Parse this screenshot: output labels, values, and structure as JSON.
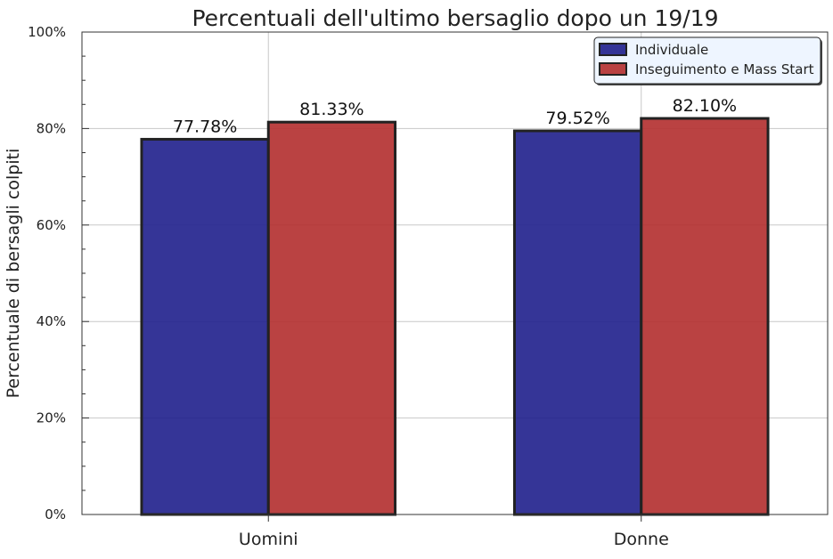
{
  "chart_data": {
    "type": "bar",
    "title": "Percentuali dell'ultimo bersaglio dopo un 19/19",
    "xlabel": "",
    "ylabel": "Percentuale di bersagli colpiti",
    "categories": [
      "Uomini",
      "Donne"
    ],
    "series": [
      {
        "name": "Individuale",
        "values": [
          77.78,
          79.52
        ],
        "labels": [
          "77.78%",
          "79.52%"
        ],
        "color": "#1f1f8c"
      },
      {
        "name": "Inseguimento e Mass Start",
        "values": [
          81.33,
          82.1
        ],
        "labels": [
          "81.33%",
          "82.10%"
        ],
        "color": "#b22d2d"
      }
    ],
    "ylim": [
      0,
      100
    ],
    "y_ticks": [
      0,
      20,
      40,
      60,
      80,
      100
    ],
    "y_tick_labels": [
      "0%",
      "20%",
      "40%",
      "60%",
      "80%",
      "100%"
    ],
    "grid": true,
    "legend_position": "top-right"
  }
}
